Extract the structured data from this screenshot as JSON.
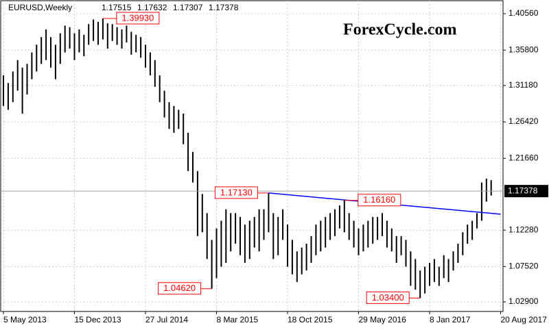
{
  "chart_data": {
    "type": "ohlc",
    "symbol": "EURUSD,Weekly",
    "last_bar": [
      1.17515,
      1.17632,
      1.17307,
      1.17378
    ],
    "watermark": "ForexCycle.com",
    "current_price": 1.17378,
    "color": "#000000",
    "grid": true,
    "ylim": [
      1.01648,
      1.42348
    ],
    "yticks": [
      {
        "value": 1.4056,
        "label": "1.40560"
      },
      {
        "value": 1.358,
        "label": "1.35800"
      },
      {
        "value": 1.3118,
        "label": "1.31180"
      },
      {
        "value": 1.2642,
        "label": "1.26420"
      },
      {
        "value": 1.2166,
        "label": "1.21660"
      },
      {
        "value": 1.1228,
        "label": "1.12280"
      },
      {
        "value": 1.0752,
        "label": "1.07520"
      },
      {
        "value": 1.029,
        "label": "1.02900"
      }
    ],
    "categories": [
      "5 May 2013",
      null,
      null,
      null,
      null,
      null,
      null,
      null,
      null,
      null,
      null,
      null,
      null,
      null,
      null,
      "15 Dec 2013",
      null,
      null,
      null,
      null,
      null,
      null,
      null,
      null,
      null,
      null,
      null,
      null,
      null,
      null,
      "27 Jul 2014",
      null,
      null,
      null,
      null,
      null,
      null,
      null,
      null,
      null,
      null,
      null,
      null,
      null,
      null,
      "8 Mar 2015",
      null,
      null,
      null,
      null,
      null,
      null,
      null,
      null,
      null,
      null,
      null,
      null,
      null,
      null,
      "18 Oct 2015",
      null,
      null,
      null,
      null,
      null,
      null,
      null,
      null,
      null,
      null,
      null,
      null,
      null,
      null,
      "29 May 2016",
      null,
      null,
      null,
      null,
      null,
      null,
      null,
      null,
      null,
      null,
      null,
      null,
      null,
      null,
      "8 Jan 2017",
      null,
      null,
      null,
      null,
      null,
      null,
      null,
      null,
      null,
      null,
      null,
      null,
      null,
      null,
      "20 Aug 2017"
    ],
    "high": [
      1.325,
      1.315,
      1.33,
      1.345,
      1.335,
      1.34,
      1.355,
      1.365,
      1.375,
      1.385,
      1.375,
      1.365,
      1.38,
      1.39,
      1.388,
      1.38,
      1.385,
      1.378,
      1.392,
      1.398,
      1.395,
      1.3993,
      1.393,
      1.392,
      1.388,
      1.385,
      1.39,
      1.382,
      1.378,
      1.375,
      1.365,
      1.355,
      1.345,
      1.325,
      1.305,
      1.29,
      1.285,
      1.28,
      1.275,
      1.25,
      1.225,
      1.2,
      1.17,
      1.145,
      1.11,
      1.125,
      1.135,
      1.15,
      1.145,
      1.145,
      1.14,
      1.13,
      1.135,
      1.14,
      1.15,
      1.15,
      1.1713,
      1.145,
      1.14,
      1.15,
      1.13,
      1.11,
      1.095,
      1.1,
      1.105,
      1.115,
      1.13,
      1.135,
      1.14,
      1.145,
      1.15,
      1.155,
      1.1616,
      1.145,
      1.135,
      1.125,
      1.13,
      1.135,
      1.14,
      1.14,
      1.145,
      1.135,
      1.125,
      1.115,
      1.115,
      1.11,
      1.095,
      1.085,
      1.07,
      1.075,
      1.08,
      1.085,
      1.075,
      1.09,
      1.085,
      1.095,
      1.105,
      1.12,
      1.13,
      1.135,
      1.145,
      1.185,
      1.19,
      1.188,
      null,
      null
    ],
    "low": [
      1.285,
      1.28,
      1.29,
      1.305,
      1.275,
      1.3,
      1.32,
      1.33,
      1.34,
      1.345,
      1.335,
      1.32,
      1.34,
      1.355,
      1.36,
      1.345,
      1.355,
      1.35,
      1.365,
      1.37,
      1.365,
      1.372,
      1.36,
      1.37,
      1.365,
      1.36,
      1.368,
      1.352,
      1.355,
      1.348,
      1.335,
      1.325,
      1.31,
      1.29,
      1.27,
      1.255,
      1.25,
      1.255,
      1.235,
      1.2,
      1.185,
      1.115,
      1.12,
      1.085,
      1.0462,
      1.06,
      1.075,
      1.08,
      1.095,
      1.105,
      1.09,
      1.08,
      1.085,
      1.1,
      1.095,
      1.11,
      1.12,
      1.085,
      1.09,
      1.11,
      1.075,
      1.065,
      1.055,
      1.065,
      1.07,
      1.08,
      1.09,
      1.095,
      1.1,
      1.11,
      1.115,
      1.125,
      1.12,
      1.11,
      1.1,
      1.09,
      1.095,
      1.1,
      1.105,
      1.11,
      1.115,
      1.1,
      1.095,
      1.08,
      1.09,
      1.075,
      1.05,
      1.045,
      1.034,
      1.04,
      1.05,
      1.055,
      1.05,
      1.06,
      1.055,
      1.07,
      1.08,
      1.09,
      1.105,
      1.11,
      1.125,
      1.135,
      1.16,
      1.168,
      null,
      null
    ],
    "annotations": [
      {
        "label": "1.39930",
        "value": 1.3993,
        "bar": 21
      },
      {
        "label": "1.17130",
        "value": 1.1713,
        "bar": 56
      },
      {
        "label": "1.16160",
        "value": 1.1616,
        "bar": 72
      },
      {
        "label": "1.04620",
        "value": 1.0462,
        "bar": 44
      },
      {
        "label": "1.03400",
        "value": 1.034,
        "bar": 88
      }
    ],
    "trendline": {
      "bars": [
        56,
        105
      ],
      "values": [
        1.1713,
        1.1436
      ],
      "color": "#0000ff"
    }
  }
}
